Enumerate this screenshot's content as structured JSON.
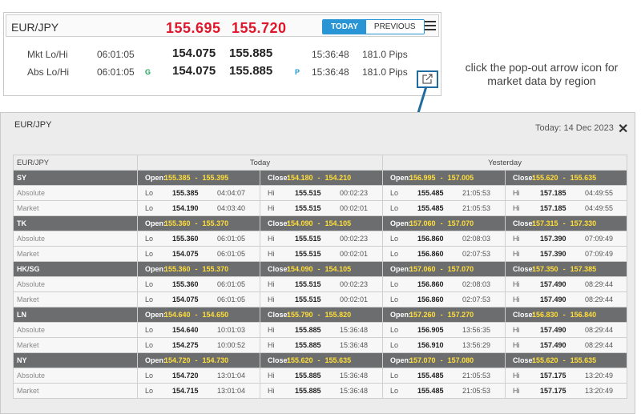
{
  "widget": {
    "pair": "EUR/JPY",
    "bid": "155.695",
    "ask": "155.720",
    "tab_today": "TODAY",
    "tab_previous": "PREVIOUS",
    "rows": [
      {
        "label": "Mkt Lo/Hi",
        "time1": "06:01:05",
        "tag1": "",
        "lo": "154.075",
        "hi": "155.885",
        "tag2": "",
        "time2": "15:36:48",
        "pips": "181.0 Pips"
      },
      {
        "label": "Abs Lo/Hi",
        "time1": "06:01:05",
        "tag1": "G",
        "lo": "154.075",
        "hi": "155.885",
        "tag2": "P",
        "time2": "15:36:48",
        "pips": "181.0 Pips"
      }
    ]
  },
  "callout": "click the pop-out arrow icon for market data by region",
  "panel": {
    "title": "EUR/JPY",
    "date": "Today: 14 Dec 2023",
    "close": "✕",
    "col_pair": "EUR/JPY",
    "col_today": "Today",
    "col_yesterday": "Yesterday",
    "open_label": "Open:",
    "close_label": "Close:",
    "dash": "-",
    "lo_label": "Lo",
    "hi_label": "Hi",
    "regions": [
      {
        "name": "SY",
        "today_open": [
          "155.385",
          "155.395"
        ],
        "today_close": [
          "154.180",
          "154.210"
        ],
        "yest_open": [
          "156.995",
          "157.005"
        ],
        "yest_close": [
          "155.620",
          "155.635"
        ],
        "rows": [
          {
            "label": "Absolute",
            "t_lo": [
              "155.385",
              "04:04:07"
            ],
            "t_hi": [
              "155.515",
              "00:02:23"
            ],
            "y_lo": [
              "155.485",
              "21:05:53"
            ],
            "y_hi": [
              "157.185",
              "04:49:55"
            ]
          },
          {
            "label": "Market",
            "t_lo": [
              "154.190",
              "04:03:40"
            ],
            "t_hi": [
              "155.515",
              "00:02:01"
            ],
            "y_lo": [
              "155.485",
              "21:05:53"
            ],
            "y_hi": [
              "157.185",
              "04:49:55"
            ]
          }
        ]
      },
      {
        "name": "TK",
        "today_open": [
          "155.360",
          "155.370"
        ],
        "today_close": [
          "154.090",
          "154.105"
        ],
        "yest_open": [
          "157.060",
          "157.070"
        ],
        "yest_close": [
          "157.315",
          "157.330"
        ],
        "rows": [
          {
            "label": "Absolute",
            "t_lo": [
              "155.360",
              "06:01:05"
            ],
            "t_hi": [
              "155.515",
              "00:02:23"
            ],
            "y_lo": [
              "156.860",
              "02:08:03"
            ],
            "y_hi": [
              "157.390",
              "07:09:49"
            ]
          },
          {
            "label": "Market",
            "t_lo": [
              "154.075",
              "06:01:05"
            ],
            "t_hi": [
              "155.515",
              "00:02:01"
            ],
            "y_lo": [
              "156.860",
              "02:07:53"
            ],
            "y_hi": [
              "157.390",
              "07:09:49"
            ]
          }
        ]
      },
      {
        "name": "HK/SG",
        "today_open": [
          "155.360",
          "155.370"
        ],
        "today_close": [
          "154.090",
          "154.105"
        ],
        "yest_open": [
          "157.060",
          "157.070"
        ],
        "yest_close": [
          "157.350",
          "157.385"
        ],
        "rows": [
          {
            "label": "Absolute",
            "t_lo": [
              "155.360",
              "06:01:05"
            ],
            "t_hi": [
              "155.515",
              "00:02:23"
            ],
            "y_lo": [
              "156.860",
              "02:08:03"
            ],
            "y_hi": [
              "157.490",
              "08:29:44"
            ]
          },
          {
            "label": "Market",
            "t_lo": [
              "154.075",
              "06:01:05"
            ],
            "t_hi": [
              "155.515",
              "00:02:01"
            ],
            "y_lo": [
              "156.860",
              "02:07:53"
            ],
            "y_hi": [
              "157.490",
              "08:29:44"
            ]
          }
        ]
      },
      {
        "name": "LN",
        "today_open": [
          "154.640",
          "154.650"
        ],
        "today_close": [
          "155.790",
          "155.820"
        ],
        "yest_open": [
          "157.260",
          "157.270"
        ],
        "yest_close": [
          "156.830",
          "156.840"
        ],
        "rows": [
          {
            "label": "Absolute",
            "t_lo": [
              "154.640",
              "10:01:03"
            ],
            "t_hi": [
              "155.885",
              "15:36:48"
            ],
            "y_lo": [
              "156.905",
              "13:56:35"
            ],
            "y_hi": [
              "157.490",
              "08:29:44"
            ]
          },
          {
            "label": "Market",
            "t_lo": [
              "154.275",
              "10:00:52"
            ],
            "t_hi": [
              "155.885",
              "15:36:48"
            ],
            "y_lo": [
              "156.910",
              "13:56:29"
            ],
            "y_hi": [
              "157.490",
              "08:29:44"
            ]
          }
        ]
      },
      {
        "name": "NY",
        "today_open": [
          "154.720",
          "154.730"
        ],
        "today_close": [
          "155.620",
          "155.635"
        ],
        "yest_open": [
          "157.070",
          "157.080"
        ],
        "yest_close": [
          "155.620",
          "155.635"
        ],
        "rows": [
          {
            "label": "Absolute",
            "t_lo": [
              "154.720",
              "13:01:04"
            ],
            "t_hi": [
              "155.885",
              "15:36:48"
            ],
            "y_lo": [
              "155.485",
              "21:05:53"
            ],
            "y_hi": [
              "157.175",
              "13:20:49"
            ]
          },
          {
            "label": "Market",
            "t_lo": [
              "154.715",
              "13:01:04"
            ],
            "t_hi": [
              "155.885",
              "15:36:48"
            ],
            "y_lo": [
              "155.485",
              "21:05:53"
            ],
            "y_hi": [
              "157.175",
              "13:20:49"
            ]
          }
        ]
      }
    ]
  },
  "colors": {
    "price_red": "#e0162b",
    "tab_blue": "#2a95d4",
    "tag_green": "#1aa35a",
    "tag_teal": "#1f9ad6",
    "region_bar": "#6c6d6e",
    "yellow": "#ffde3a"
  }
}
